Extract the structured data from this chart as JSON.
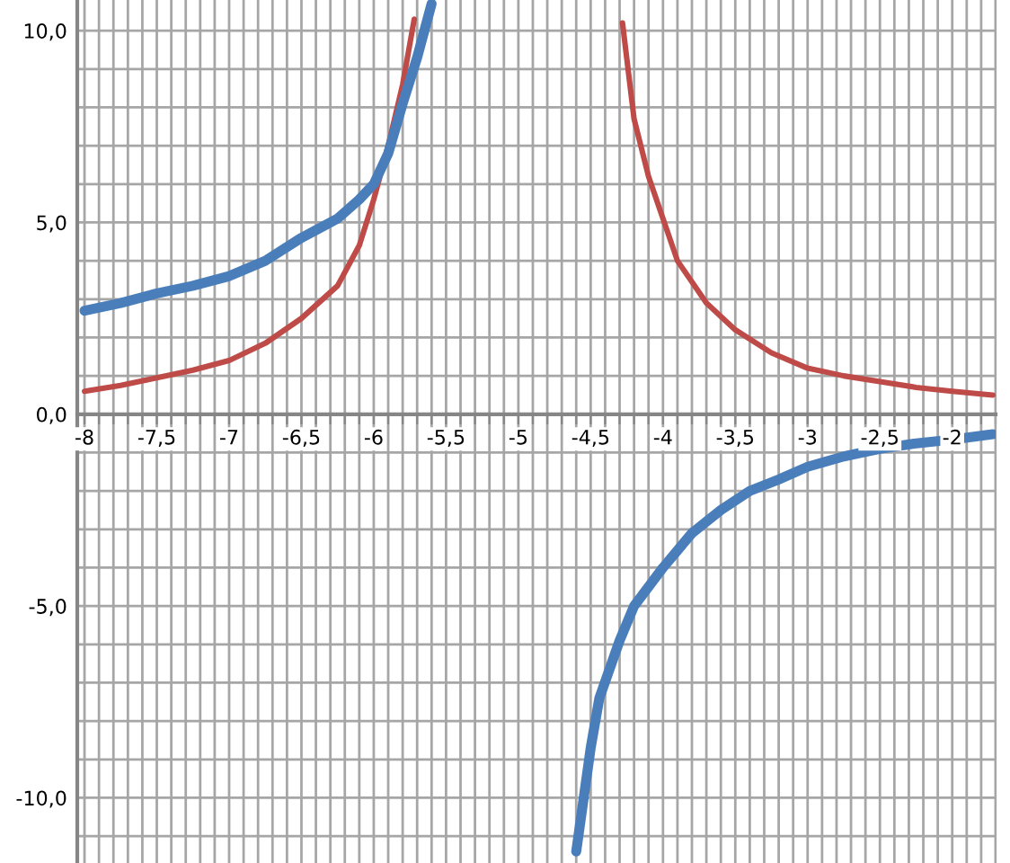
{
  "chart_data": {
    "type": "line",
    "grid": true,
    "legend": false,
    "marker": "none",
    "line_style": "solid",
    "xlim": [
      -8.05,
      -1.7
    ],
    "ylim": [
      -11.7,
      10.8
    ],
    "xticks": [
      -8,
      {
        "value": -7.9,
        "label": null
      },
      {
        "value": -7.8,
        "label": null
      },
      {
        "value": -7.7,
        "label": null
      },
      {
        "value": -7.6,
        "label": null
      },
      {
        "value": -7.5,
        "label": "-7,5"
      },
      {
        "value": -7.4,
        "label": null
      },
      {
        "value": -7.3,
        "label": null
      },
      {
        "value": -7.2,
        "label": null
      },
      {
        "value": -7.1,
        "label": null
      },
      -7,
      {
        "value": -6.9,
        "label": null
      },
      {
        "value": -6.8,
        "label": null
      },
      {
        "value": -6.7,
        "label": null
      },
      {
        "value": -6.6,
        "label": null
      },
      {
        "value": -6.5,
        "label": "-6,5"
      },
      {
        "value": -6.4,
        "label": null
      },
      {
        "value": -6.3,
        "label": null
      },
      {
        "value": -6.2,
        "label": null
      },
      {
        "value": -6.1,
        "label": null
      },
      -6,
      {
        "value": -5.9,
        "label": null
      },
      {
        "value": -5.8,
        "label": null
      },
      {
        "value": -5.7,
        "label": null
      },
      {
        "value": -5.6,
        "label": null
      },
      {
        "value": -5.5,
        "label": "-5,5"
      },
      {
        "value": -5.4,
        "label": null
      },
      {
        "value": -5.3,
        "label": null
      },
      {
        "value": -5.2,
        "label": null
      },
      {
        "value": -5.1,
        "label": null
      },
      -5,
      {
        "value": -4.9,
        "label": null
      },
      {
        "value": -4.8,
        "label": null
      },
      {
        "value": -4.7,
        "label": null
      },
      {
        "value": -4.6,
        "label": null
      },
      {
        "value": -4.5,
        "label": "-4,5"
      },
      {
        "value": -4.4,
        "label": null
      },
      {
        "value": -4.3,
        "label": null
      },
      {
        "value": -4.2,
        "label": null
      },
      {
        "value": -4.1,
        "label": null
      },
      -4,
      {
        "value": -3.9,
        "label": null
      },
      {
        "value": -3.8,
        "label": null
      },
      {
        "value": -3.7,
        "label": null
      },
      {
        "value": -3.6,
        "label": null
      },
      {
        "value": -3.5,
        "label": "-3,5"
      },
      {
        "value": -3.4,
        "label": null
      },
      {
        "value": -3.3,
        "label": null
      },
      {
        "value": -3.2,
        "label": null
      },
      {
        "value": -3.1,
        "label": null
      },
      -3,
      {
        "value": -2.9,
        "label": null
      },
      {
        "value": -2.8,
        "label": null
      },
      {
        "value": -2.7,
        "label": null
      },
      {
        "value": -2.6,
        "label": null
      },
      {
        "value": -2.5,
        "label": "-2,5"
      },
      {
        "value": -2.4,
        "label": null
      },
      {
        "value": -2.3,
        "label": null
      },
      {
        "value": -2.2,
        "label": null
      },
      {
        "value": -2.1,
        "label": null
      },
      -2,
      {
        "value": -1.9,
        "label": null
      },
      {
        "value": -1.8,
        "label": null
      },
      {
        "value": -1.7,
        "label": null
      }
    ],
    "yticks": [
      {
        "value": -11,
        "label": null
      },
      {
        "value": -10,
        "label": "-10,0"
      },
      {
        "value": -9,
        "label": null
      },
      {
        "value": -8,
        "label": null
      },
      {
        "value": -7,
        "label": null
      },
      {
        "value": -6,
        "label": null
      },
      {
        "value": -5,
        "label": "-5,0"
      },
      {
        "value": -4,
        "label": null
      },
      {
        "value": -3,
        "label": null
      },
      {
        "value": -2,
        "label": null
      },
      {
        "value": -1,
        "label": null
      },
      {
        "value": 0,
        "label": "0,0"
      },
      {
        "value": 1,
        "label": null
      },
      {
        "value": 2,
        "label": null
      },
      {
        "value": 3,
        "label": null
      },
      {
        "value": 4,
        "label": null
      },
      {
        "value": 5,
        "label": "5,0"
      },
      {
        "value": 6,
        "label": null
      },
      {
        "value": 7,
        "label": null
      },
      {
        "value": 8,
        "label": null
      },
      {
        "value": 9,
        "label": null
      },
      {
        "value": 10,
        "label": "10,0"
      }
    ],
    "series": [
      {
        "type": "line",
        "color": "#be4b48",
        "x": [
          -8,
          -7.75,
          -7.5,
          -7.25,
          -7,
          -6.75,
          -6.5,
          -6.25,
          -6.1,
          -6,
          -5.9,
          -5.8,
          -5.72
        ],
        "values": [
          0.6,
          0.75,
          0.95,
          1.15,
          1.4,
          1.85,
          2.5,
          3.35,
          4.4,
          5.6,
          7.0,
          8.6,
          10.3
        ]
      },
      {
        "type": "line",
        "color": "#be4b48",
        "x": [
          -4.28,
          -4.2,
          -4.1,
          -4,
          -3.9,
          -3.7,
          -3.5,
          -3.25,
          -3,
          -2.75,
          -2.5,
          -2.25,
          -2,
          -1.72
        ],
        "values": [
          10.2,
          7.7,
          6.2,
          5.1,
          4.0,
          2.9,
          2.2,
          1.6,
          1.2,
          1.0,
          0.85,
          0.7,
          0.6,
          0.5
        ]
      },
      {
        "type": "line",
        "color": "#4a7ebb",
        "x": [
          -8,
          -7.75,
          -7.5,
          -7.25,
          -7,
          -6.75,
          -6.5,
          -6.25,
          -6.1,
          -6,
          -5.9,
          -5.8,
          -5.7,
          -5.6
        ],
        "values": [
          2.7,
          2.9,
          3.15,
          3.35,
          3.6,
          4.0,
          4.6,
          5.1,
          5.6,
          6.0,
          6.8,
          8.1,
          9.3,
          10.7
        ]
      },
      {
        "type": "line",
        "color": "#4a7ebb",
        "x": [
          -4.6,
          -4.5,
          -4.44,
          -4.3,
          -4.2,
          -4,
          -3.8,
          -3.6,
          -3.4,
          -3.2,
          -3,
          -2.75,
          -2.5,
          -2.25,
          -2,
          -1.72
        ],
        "values": [
          -11.4,
          -8.7,
          -7.4,
          -5.9,
          -5.0,
          -4.0,
          -3.1,
          -2.5,
          -2.0,
          -1.7,
          -1.37,
          -1.1,
          -0.9,
          -0.76,
          -0.66,
          -0.52
        ]
      }
    ]
  }
}
